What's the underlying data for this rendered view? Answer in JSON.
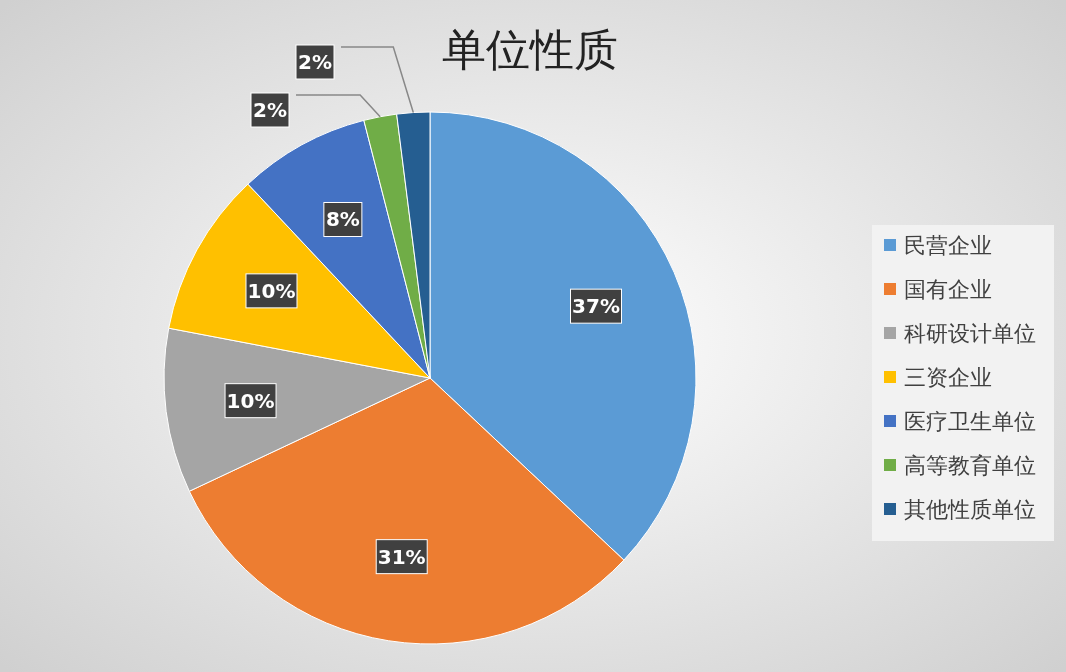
{
  "chart_data": {
    "type": "pie",
    "title": "单位性质",
    "categories": [
      "民营企业",
      "国有企业",
      "科研设计单位",
      "三资企业",
      "医疗卫生单位",
      "高等教育单位",
      "其他性质单位"
    ],
    "values": [
      37,
      31,
      10,
      10,
      8,
      2,
      2
    ],
    "colors": [
      "#5b9bd5",
      "#ed7d31",
      "#a5a5a5",
      "#ffc000",
      "#4472c4",
      "#70ad47",
      "#255e91"
    ],
    "value_labels": [
      "37%",
      "31%",
      "10%",
      "10%",
      "8%",
      "2%",
      "2%"
    ],
    "legend": "right"
  }
}
